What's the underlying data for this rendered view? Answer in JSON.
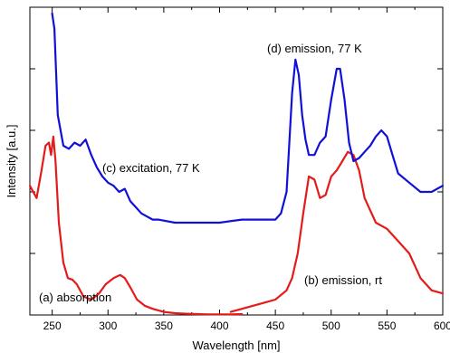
{
  "chart_data": {
    "type": "line",
    "title": "",
    "xlabel": "Wavelength [nm]",
    "ylabel": "Intensity [a.u.]",
    "xlim": [
      230,
      600
    ],
    "ylim": [
      0,
      1
    ],
    "x_ticks": [
      250,
      300,
      350,
      400,
      450,
      500,
      550,
      600
    ],
    "y_tick_labels_shown": false,
    "grid": false,
    "legend": "none (curves labelled directly)",
    "annotations": [
      "(a) absorption",
      "(b) emission, rt",
      "(c) excitation, 77 K",
      "(d) emission, 77 K"
    ],
    "series": [
      {
        "name": "(a) absorption",
        "color": "#e41b1b",
        "x": [
          230,
          236,
          240,
          244,
          247,
          249,
          251,
          253,
          256,
          260,
          264,
          268,
          272,
          278,
          285,
          292,
          298,
          305,
          311,
          315,
          320,
          326,
          333,
          340,
          350,
          360,
          370,
          380,
          390,
          400,
          410,
          420
        ],
        "y": [
          0.42,
          0.38,
          0.46,
          0.55,
          0.56,
          0.52,
          0.58,
          0.5,
          0.3,
          0.17,
          0.12,
          0.115,
          0.1,
          0.06,
          0.05,
          0.07,
          0.1,
          0.12,
          0.13,
          0.12,
          0.09,
          0.05,
          0.03,
          0.02,
          0.01,
          0.006,
          0.004,
          0.003,
          0.002,
          0.002,
          0.002,
          0.003
        ]
      },
      {
        "name": "(b) emission, rt",
        "color": "#e41b1b",
        "x": [
          410,
          420,
          430,
          440,
          450,
          460,
          465,
          470,
          475,
          480,
          485,
          490,
          495,
          500,
          505,
          510,
          515,
          520,
          525,
          530,
          540,
          550,
          560,
          570,
          580,
          590,
          600
        ],
        "y": [
          0.01,
          0.02,
          0.03,
          0.04,
          0.05,
          0.08,
          0.12,
          0.2,
          0.33,
          0.45,
          0.44,
          0.38,
          0.39,
          0.45,
          0.47,
          0.5,
          0.53,
          0.52,
          0.47,
          0.38,
          0.3,
          0.28,
          0.24,
          0.2,
          0.12,
          0.08,
          0.07
        ]
      },
      {
        "name": "(c) excitation, 77 K",
        "color": "#1010d8",
        "x": [
          250,
          252,
          255,
          260,
          265,
          270,
          275,
          280,
          285,
          290,
          295,
          300,
          305,
          310,
          315,
          320,
          325,
          330,
          340,
          345,
          360,
          380,
          400,
          420,
          440,
          450,
          455,
          460
        ],
        "y": [
          0.98,
          0.93,
          0.65,
          0.55,
          0.54,
          0.56,
          0.55,
          0.57,
          0.52,
          0.48,
          0.45,
          0.43,
          0.42,
          0.4,
          0.41,
          0.37,
          0.35,
          0.33,
          0.31,
          0.31,
          0.3,
          0.3,
          0.3,
          0.31,
          0.31,
          0.31,
          0.33,
          0.4
        ]
      },
      {
        "name": "(d) emission, 77 K",
        "color": "#1010d8",
        "x": [
          460,
          465,
          468,
          471,
          474,
          477,
          480,
          485,
          490,
          495,
          500,
          505,
          508,
          512,
          516,
          520,
          525,
          530,
          535,
          540,
          545,
          550,
          555,
          560,
          570,
          580,
          590,
          600
        ],
        "y": [
          0.4,
          0.72,
          0.83,
          0.78,
          0.65,
          0.57,
          0.52,
          0.52,
          0.56,
          0.58,
          0.7,
          0.8,
          0.8,
          0.7,
          0.56,
          0.5,
          0.51,
          0.53,
          0.55,
          0.58,
          0.6,
          0.58,
          0.52,
          0.46,
          0.43,
          0.4,
          0.4,
          0.42
        ]
      }
    ]
  }
}
